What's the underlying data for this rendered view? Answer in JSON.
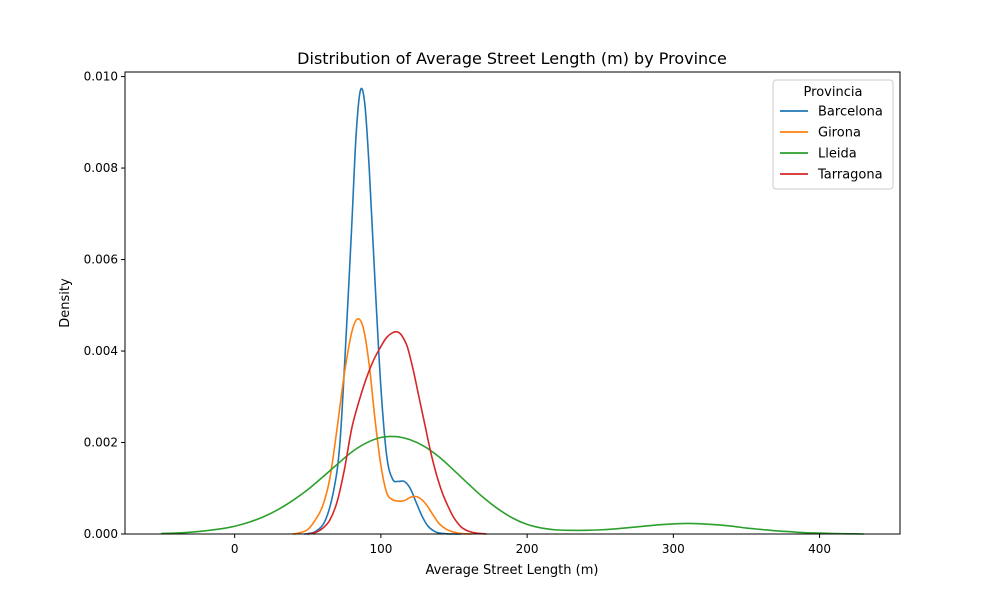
{
  "chart_data": {
    "type": "line",
    "title": "Distribution of Average Street Length (m) by Province",
    "xlabel": "Average Street Length (m)",
    "ylabel": "Density",
    "xlim": [
      -75,
      455
    ],
    "ylim": [
      0,
      0.0101
    ],
    "xticks": [
      0,
      100,
      200,
      300,
      400
    ],
    "xtick_labels": [
      "0",
      "100",
      "200",
      "300",
      "400"
    ],
    "yticks": [
      0,
      0.002,
      0.004,
      0.006,
      0.008,
      0.01
    ],
    "ytick_labels": [
      "0.000",
      "0.002",
      "0.004",
      "0.006",
      "0.008",
      "0.010"
    ],
    "grid": false,
    "legend": {
      "title": "Provincia",
      "placement": "top-right"
    },
    "series": [
      {
        "name": "Barcelona",
        "color": "#1f77b4",
        "x": [
          48,
          55,
          62,
          68,
          72,
          76,
          80,
          83,
          86,
          89,
          92,
          96,
          100,
          104,
          108,
          112,
          116,
          120,
          124,
          128,
          132,
          136,
          140,
          145,
          150,
          155
        ],
        "y": [
          0.0,
          5e-05,
          0.0003,
          0.001,
          0.002,
          0.0042,
          0.0067,
          0.0087,
          0.0097,
          0.0094,
          0.008,
          0.0055,
          0.0032,
          0.0017,
          0.0012,
          0.00115,
          0.00115,
          0.001,
          0.0007,
          0.0004,
          0.00018,
          7e-05,
          2e-05,
          5e-06,
          0.0,
          0.0
        ]
      },
      {
        "name": "Girona",
        "color": "#ff7f0e",
        "x": [
          40,
          45,
          50,
          55,
          60,
          65,
          70,
          75,
          80,
          84,
          88,
          92,
          96,
          100,
          104,
          108,
          112,
          116,
          120,
          124,
          128,
          132,
          136,
          140,
          145,
          150,
          155,
          162
        ],
        "y": [
          0.0,
          3e-05,
          0.0001,
          0.0003,
          0.0006,
          0.0012,
          0.0023,
          0.0035,
          0.0044,
          0.0047,
          0.0045,
          0.0037,
          0.0025,
          0.0015,
          0.0009,
          0.00075,
          0.00072,
          0.00073,
          0.0008,
          0.00082,
          0.00075,
          0.0006,
          0.0004,
          0.00022,
          0.0001,
          4e-05,
          1e-05,
          0.0
        ]
      },
      {
        "name": "Lleida",
        "color": "#2ca02c",
        "x": [
          -50,
          -40,
          -30,
          -20,
          -10,
          0,
          10,
          20,
          30,
          40,
          50,
          60,
          70,
          80,
          90,
          100,
          110,
          120,
          130,
          140,
          150,
          160,
          170,
          180,
          190,
          200,
          210,
          220,
          230,
          240,
          250,
          260,
          270,
          280,
          290,
          300,
          310,
          320,
          330,
          340,
          350,
          360,
          370,
          380,
          390,
          400,
          410,
          420,
          430
        ],
        "y": [
          1e-05,
          2e-05,
          4e-05,
          7e-05,
          0.00011,
          0.00017,
          0.00026,
          0.00038,
          0.00054,
          0.00074,
          0.00097,
          0.00124,
          0.00152,
          0.00179,
          0.00199,
          0.00211,
          0.00213,
          0.00206,
          0.00191,
          0.00168,
          0.00139,
          0.00109,
          0.0008,
          0.00055,
          0.00035,
          0.00021,
          0.00013,
          9e-05,
          8e-05,
          8e-05,
          9e-05,
          0.00011,
          0.00014,
          0.00017,
          0.0002,
          0.00022,
          0.00023,
          0.00022,
          0.0002,
          0.00017,
          0.00013,
          0.0001,
          7e-05,
          5e-05,
          3e-05,
          2e-05,
          1e-05,
          5e-06,
          0.0
        ]
      },
      {
        "name": "Tarragona",
        "color": "#d62728",
        "x": [
          50,
          55,
          60,
          65,
          70,
          75,
          80,
          85,
          90,
          95,
          100,
          104,
          108,
          111,
          114,
          118,
          122,
          126,
          130,
          134,
          138,
          142,
          146,
          150,
          155,
          160,
          165,
          172
        ],
        "y": [
          0.0,
          3e-05,
          0.00012,
          0.0003,
          0.0007,
          0.0014,
          0.0023,
          0.0029,
          0.0034,
          0.0038,
          0.0041,
          0.0043,
          0.0044,
          0.00442,
          0.00435,
          0.0041,
          0.0036,
          0.003,
          0.0024,
          0.0018,
          0.0013,
          0.0009,
          0.0006,
          0.00035,
          0.00015,
          6e-05,
          2e-05,
          0.0
        ]
      }
    ]
  }
}
